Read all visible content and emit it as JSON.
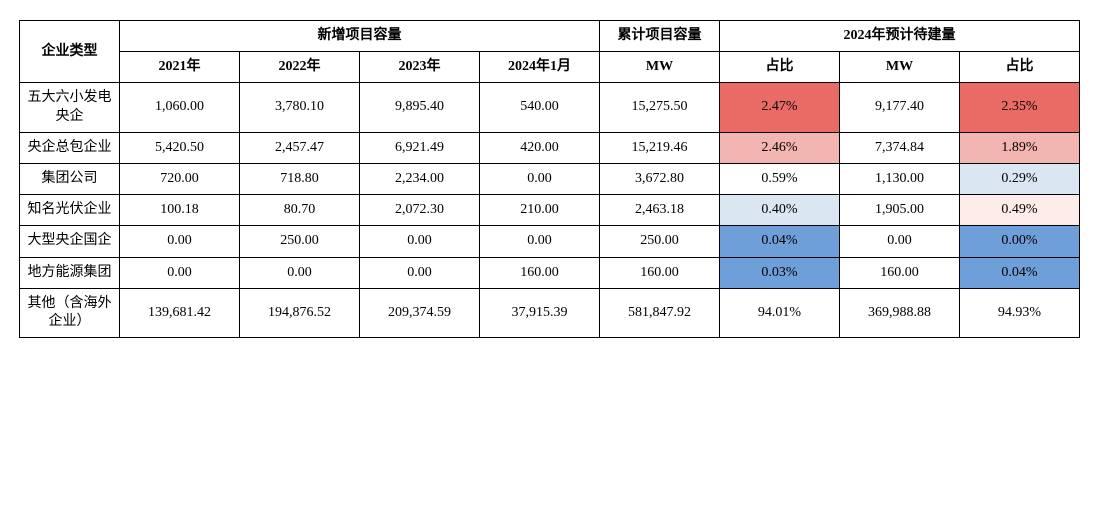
{
  "header": {
    "row_label": "企业类型",
    "group_new": "新增项目容量",
    "group_cum": "累计项目容量",
    "group_forecast": "2024年预计待建量",
    "sub_2021": "2021年",
    "sub_2022": "2022年",
    "sub_2023": "2023年",
    "sub_2024jan": "2024年1月",
    "sub_mw": "MW",
    "sub_pct": "占比"
  },
  "rows": [
    {
      "label": "五大六小发电央企",
      "v2021": "1,060.00",
      "v2022": "3,780.10",
      "v2023": "9,895.40",
      "v2024jan": "540.00",
      "cum_mw": "15,275.50",
      "cum_pct": "2.47%",
      "cum_pct_bg": "#ea6b66",
      "f_mw": "9,177.40",
      "f_pct": "2.35%",
      "f_pct_bg": "#ea6b66"
    },
    {
      "label": "央企总包企业",
      "v2021": "5,420.50",
      "v2022": "2,457.47",
      "v2023": "6,921.49",
      "v2024jan": "420.00",
      "cum_mw": "15,219.46",
      "cum_pct": "2.46%",
      "cum_pct_bg": "#f3b5b2",
      "f_mw": "7,374.84",
      "f_pct": "1.89%",
      "f_pct_bg": "#f3b5b2"
    },
    {
      "label": "集团公司",
      "v2021": "720.00",
      "v2022": "718.80",
      "v2023": "2,234.00",
      "v2024jan": "0.00",
      "cum_mw": "3,672.80",
      "cum_pct": "0.59%",
      "cum_pct_bg": "#ffffff",
      "f_mw": "1,130.00",
      "f_pct": "0.29%",
      "f_pct_bg": "#dae6f2"
    },
    {
      "label": "知名光伏企业",
      "v2021": "100.18",
      "v2022": "80.70",
      "v2023": "2,072.30",
      "v2024jan": "210.00",
      "cum_mw": "2,463.18",
      "cum_pct": "0.40%",
      "cum_pct_bg": "#dae6f2",
      "f_mw": "1,905.00",
      "f_pct": "0.49%",
      "f_pct_bg": "#fdecea"
    },
    {
      "label": "大型央企国企",
      "v2021": "0.00",
      "v2022": "250.00",
      "v2023": "0.00",
      "v2024jan": "0.00",
      "cum_mw": "250.00",
      "cum_pct": "0.04%",
      "cum_pct_bg": "#6f9fd8",
      "f_mw": "0.00",
      "f_pct": "0.00%",
      "f_pct_bg": "#6f9fd8"
    },
    {
      "label": "地方能源集团",
      "v2021": "0.00",
      "v2022": "0.00",
      "v2023": "0.00",
      "v2024jan": "160.00",
      "cum_mw": "160.00",
      "cum_pct": "0.03%",
      "cum_pct_bg": "#6f9fd8",
      "f_mw": "160.00",
      "f_pct": "0.04%",
      "f_pct_bg": "#6f9fd8"
    },
    {
      "label": "其他（含海外企业）",
      "v2021": "139,681.42",
      "v2022": "194,876.52",
      "v2023": "209,374.59",
      "v2024jan": "37,915.39",
      "cum_mw": "581,847.92",
      "cum_pct": "94.01%",
      "cum_pct_bg": "#ffffff",
      "f_mw": "369,988.88",
      "f_pct": "94.93%",
      "f_pct_bg": "#ffffff"
    }
  ]
}
